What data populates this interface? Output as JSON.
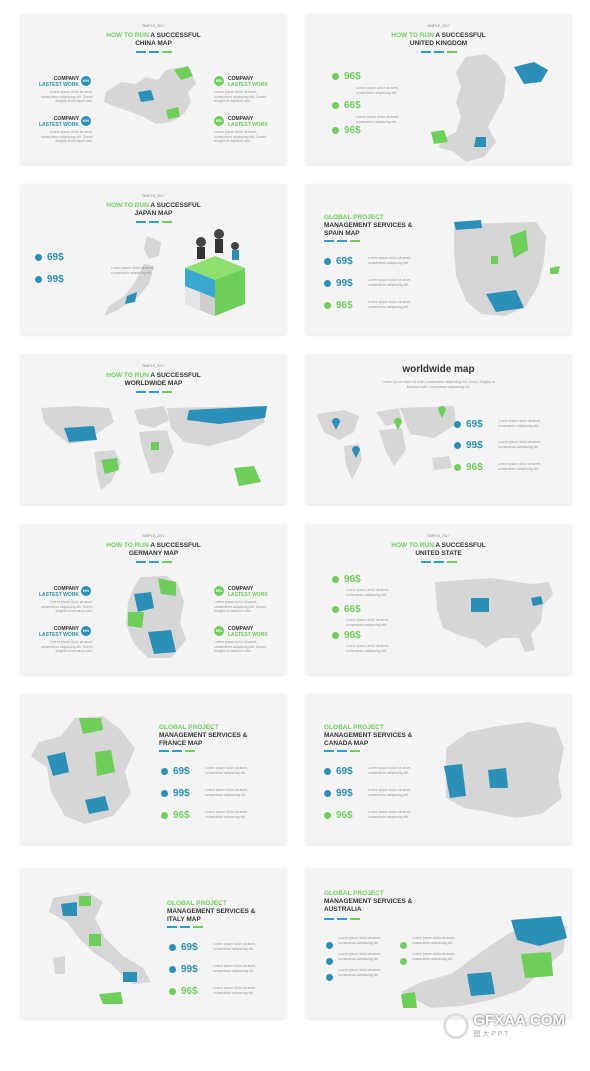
{
  "s1": {
    "tag": "SIMPLE_2017",
    "t1": "HOW TO RUN",
    "t2": " A SUCCESSFUL",
    "t3": "CHINA MAP",
    "l1a": "COMPANY",
    "l1b": "LASTEST WORK",
    "l2a": "COMPANY",
    "l2b": "LASTEST WORK",
    "r1a": "COMPANY",
    "r1b": "LASTEST WORK",
    "r2a": "COMPANY",
    "r2b": "LASTEST WORK",
    "pct": "60%",
    "desc": "Lorem ipsum dolor sit amet, consectetur adipiscing elit. Donec fringilla at tincidunt odio."
  },
  "s2": {
    "tag": "SIMPLE_2017",
    "t1": "HOW TO RUN",
    "t2": " A SUCCESSFUL",
    "t3": "UNITED KINGDOM",
    "p1": "96$",
    "p2": "66$",
    "p3": "96$",
    "desc": "Lorem ipsum dolor sit amet, consectetur adipiscing elit."
  },
  "s3": {
    "tag": "SIMPLE_2017",
    "t1": "HOW TO RUN",
    "t2": " A SUCCESSFUL",
    "t3": "JAPAN MAP",
    "p1": "69$",
    "p2": "99$",
    "desc": "Lorem ipsum dolor sit amet, consectetur adipiscing elit."
  },
  "s4": {
    "t1": "GLOBAL PROJECT",
    "t2": "MANAGEMENT SERVICES &",
    "t3": "SPAIN MAP",
    "p1": "69$",
    "p2": "99$",
    "p3": "96$",
    "desc": "Lorem ipsum dolor sit amet, consectetur adipiscing elit."
  },
  "s5": {
    "tag": "SIMPLE_2017",
    "t1": "HOW TO RUN",
    "t2": " A SUCCESSFUL",
    "t3": "WORLDWIDE MAP"
  },
  "s6": {
    "title": "worldwide map",
    "sub": "Lorem ipsum dolor sit amet, consectetur adipiscing elit. Donec fringilla at tincidunt odio, consectetur adipiscing elit.",
    "p1": "69$",
    "p2": "99$",
    "p3": "96$",
    "desc": "Lorem ipsum dolor sit amet, consectetur adipiscing elit."
  },
  "s7": {
    "tag": "SIMPLE_2017",
    "t1": "HOW TO RUN",
    "t2": " A SUCCESSFUL",
    "t3": "GERMANY MAP",
    "l1a": "COMPANY",
    "l1b": "LASTEST WORK",
    "l2a": "COMPANY",
    "l2b": "LASTEST WORK",
    "r1a": "COMPANY",
    "r1b": "LASTEST WORK",
    "r2a": "COMPANY",
    "r2b": "LASTEST WORK",
    "pct": "60%",
    "desc": "Lorem ipsum dolor sit amet, consectetur adipiscing elit. Donec fringilla at tincidunt odio."
  },
  "s8": {
    "tag": "SIMPLE_2017",
    "t1": "HOW TO RUN",
    "t2": " A SUCCESSFUL",
    "t3": "UNITED STATE",
    "p1": "96$",
    "p2": "66$",
    "p3": "96$",
    "desc": "Lorem ipsum dolor sit amet, consectetur adipiscing elit."
  },
  "s9": {
    "t1": "GLOBAL PROJECT",
    "t2": "MANAGEMENT SERVICES &",
    "t3": "FRANCE MAP",
    "p1": "69$",
    "p2": "99$",
    "p3": "96$",
    "desc": "Lorem ipsum dolor sit amet, consectetur adipiscing elit."
  },
  "s10": {
    "t1": "GLOBAL PROJECT",
    "t2": "MANAGEMENT SERVICES &",
    "t3": "CANADA MAP",
    "p1": "69$",
    "p2": "99$",
    "p3": "96$",
    "desc": "Lorem ipsum dolor sit amet, consectetur adipiscing elit."
  },
  "s11": {
    "t1": "GLOBAL PROJECT",
    "t2": "MANAGEMENT SERVICES &",
    "t3": "ITALY MAP",
    "p1": "69$",
    "p2": "99$",
    "p3": "96$",
    "desc": "Lorem ipsum dolor sit amet, consectetur adipiscing elit."
  },
  "s12": {
    "t1": "GLOBAL PROJECT",
    "t2": "MANAGEMENT SERVICES &",
    "t3": "AUSTRALIA",
    "desc": "Lorem ipsum dolor sit amet, consectetur adipiscing elit."
  },
  "watermark": {
    "brand": "GFXAA.COM",
    "sub": "图 大 P P T"
  },
  "colors": {
    "blue": "#2a90b8",
    "green": "#6dcf5a",
    "map_gray": "#d6d6d6",
    "slide_bg": "#f4f4f4"
  }
}
